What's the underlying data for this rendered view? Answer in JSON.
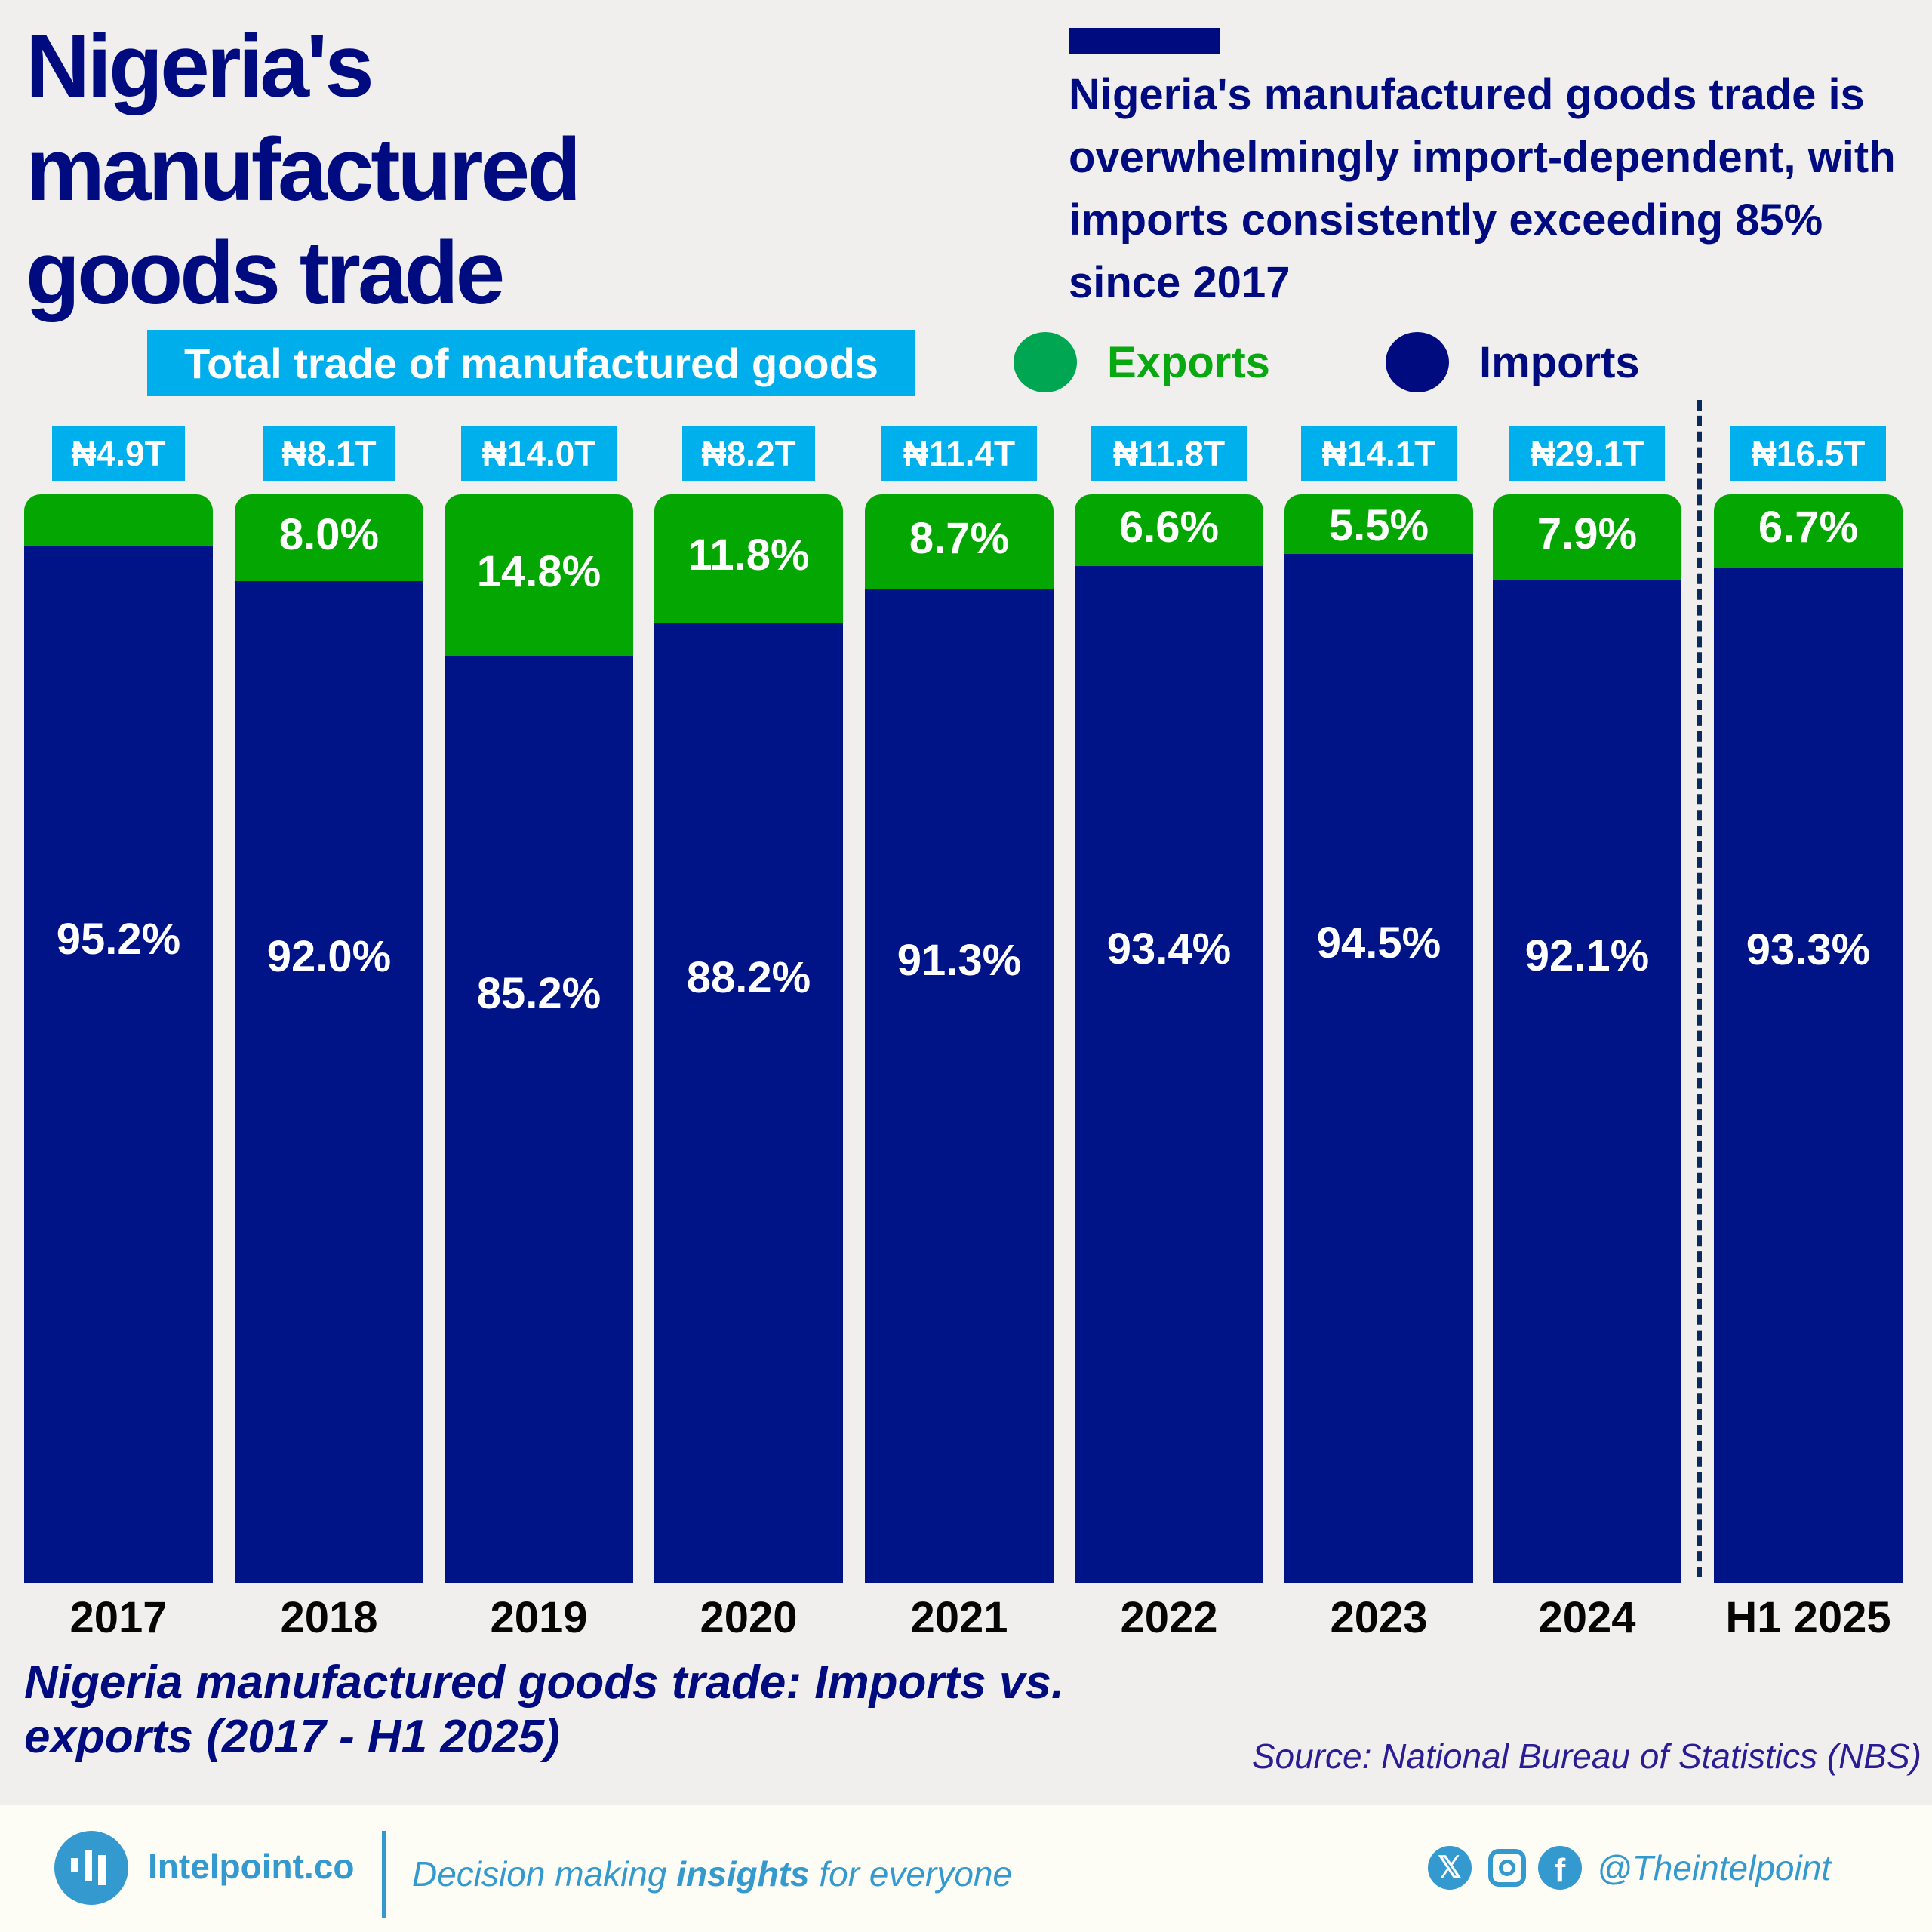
{
  "header": {
    "title": "Nigeria's manufactured goods trade",
    "summary": "Nigeria's manufactured goods trade is overwhelmingly import-dependent, with imports consistently exceeding 85% since 2017",
    "total_label": "Total trade of manufactured goods"
  },
  "legend": {
    "exports": {
      "label": "Exports",
      "color": "#07a810",
      "dot_color": "#00a651"
    },
    "imports": {
      "label": "Imports",
      "color": "#000b80",
      "dot_color": "#000b80"
    }
  },
  "chart_data": {
    "type": "bar",
    "stacked": true,
    "normalized_percent": true,
    "title": "Nigeria manufactured goods trade: Imports vs. exports (2017 - H1 2025)",
    "xlabel": "",
    "ylabel": "",
    "ylim": [
      0,
      100
    ],
    "categories": [
      "2017",
      "2018",
      "2019",
      "2020",
      "2021",
      "2022",
      "2023",
      "2024",
      "H1 2025"
    ],
    "totals": [
      "₦4.9T",
      "₦8.1T",
      "₦14.0T",
      "₦8.2T",
      "₦11.4T",
      "₦11.8T",
      "₦14.1T",
      "₦29.1T",
      "₦16.5T"
    ],
    "series": [
      {
        "name": "Exports",
        "color": "#04a702",
        "values": [
          4.8,
          8.0,
          14.8,
          11.8,
          8.7,
          6.6,
          5.5,
          7.9,
          6.7
        ],
        "labels": [
          "",
          "8.0%",
          "14.8%",
          "11.8%",
          "8.7%",
          "6.6%",
          "5.5%",
          "7.9%",
          "6.7%"
        ]
      },
      {
        "name": "Imports",
        "color": "#011487",
        "values": [
          95.2,
          92.0,
          85.2,
          88.2,
          91.3,
          93.4,
          94.5,
          92.1,
          93.3
        ],
        "labels": [
          "95.2%",
          "92.0%",
          "85.2%",
          "88.2%",
          "91.3%",
          "93.4%",
          "94.5%",
          "92.1%",
          "93.3%"
        ]
      }
    ],
    "annotations": [
      "Dashed divider separating full years from H1 2025"
    ],
    "legend_position": "top-right",
    "grid": false
  },
  "subtitle": "Nigeria manufactured goods trade: Imports vs. exports (2017 - H1 2025)",
  "source": "Source: National Bureau of Statistics (NBS)",
  "footer": {
    "brand": "Intelpoint.co",
    "tagline_pre": "Decision making ",
    "tagline_bold": "insights",
    "tagline_post": " for everyone",
    "handle": "@Theintelpoint",
    "x_glyph": "𝕏",
    "fb_glyph": "f"
  }
}
